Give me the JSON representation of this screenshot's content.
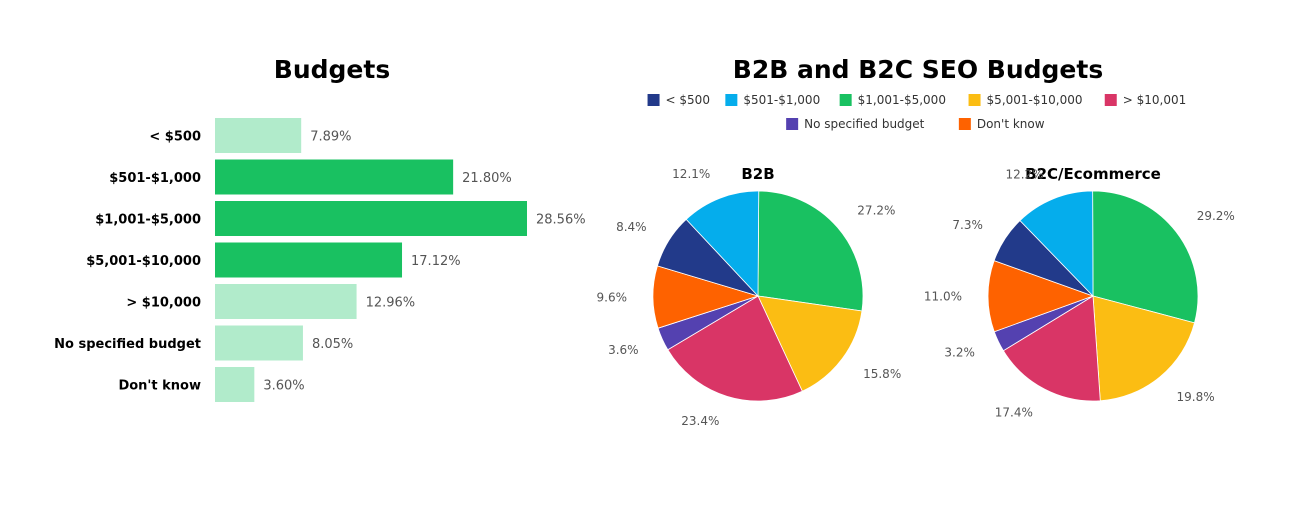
{
  "chart_data": [
    {
      "type": "bar",
      "orientation": "horizontal",
      "title": "Budgets",
      "categories": [
        "< $500",
        "$501-$1,000",
        "$1,001-$5,000",
        "$5,001-$10,000",
        "> $10,000",
        "No specified budget",
        "Don't know"
      ],
      "values": [
        7.89,
        21.8,
        28.56,
        17.12,
        12.96,
        8.05,
        3.6
      ],
      "value_labels": [
        "7.89%",
        "21.80%",
        "28.56%",
        "17.12%",
        "12.96%",
        "8.05%",
        "3.60%"
      ],
      "highlighted": [
        false,
        true,
        true,
        true,
        false,
        false,
        false
      ],
      "colors": {
        "highlight": "#19c161",
        "normal": "#b1ebcb"
      },
      "unit": "%",
      "xlim": [
        0,
        30
      ],
      "grid": false
    },
    {
      "type": "pie",
      "title": "B2B and B2C SEO Budgets",
      "legend": {
        "placement": "top",
        "entries": [
          "< $500",
          "$501-$1,000",
          "$1,001-$5,000",
          "$5,001-$10,000",
          "> $10,001",
          "No specified budget",
          "Don't know"
        ]
      },
      "colors": [
        "#223a8a",
        "#05adec",
        "#19c161",
        "#fbbd13",
        "#d93566",
        "#5441b0",
        "#fe6200"
      ],
      "pies": [
        {
          "name": "B2B",
          "values": [
            8.4,
            12.1,
            27.2,
            15.8,
            23.4,
            3.6,
            9.6
          ],
          "labels": [
            "8.4%",
            "12.1%",
            "27.2%",
            "15.8%",
            "23.4%",
            "3.6%",
            "9.6%"
          ]
        },
        {
          "name": "B2C/Ecommerce",
          "values": [
            7.3,
            12.2,
            29.2,
            19.8,
            17.4,
            3.2,
            11.0
          ],
          "labels": [
            "7.3%",
            "12.2%",
            "29.2%",
            "19.8%",
            "17.4%",
            "3.2%",
            "11.0%"
          ]
        }
      ]
    }
  ]
}
